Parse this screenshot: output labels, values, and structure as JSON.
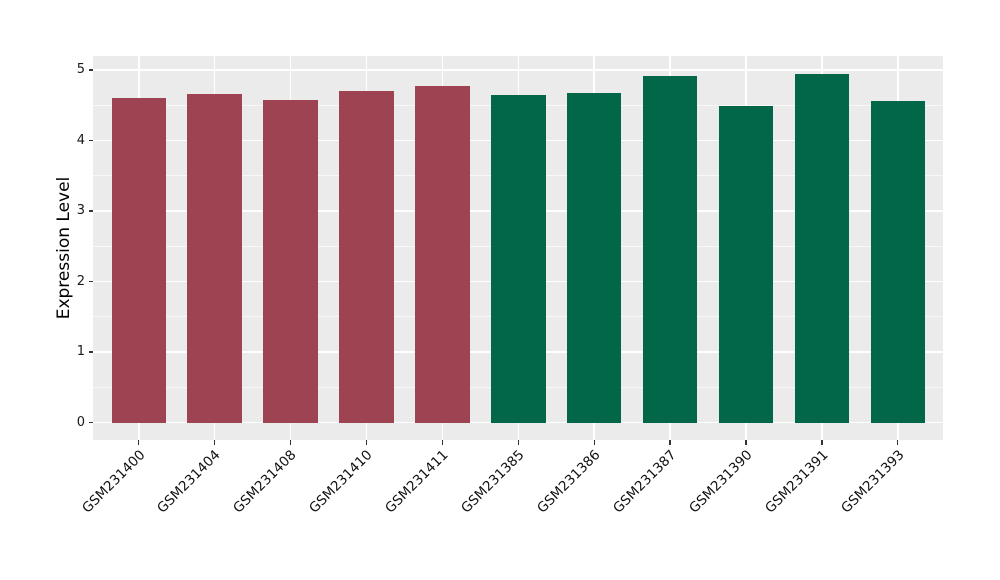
{
  "chart_data": {
    "type": "bar",
    "title": "",
    "xlabel": "",
    "ylabel": "Expression Level",
    "categories": [
      "GSM231400",
      "GSM231404",
      "GSM231408",
      "GSM231410",
      "GSM231411",
      "GSM231385",
      "GSM231386",
      "GSM231387",
      "GSM231390",
      "GSM231391",
      "GSM231393"
    ],
    "values": [
      4.6,
      4.66,
      4.58,
      4.71,
      4.78,
      4.65,
      4.67,
      4.91,
      4.49,
      4.95,
      4.56
    ],
    "bar_colors": [
      "#9E4352",
      "#9E4352",
      "#9E4352",
      "#9E4352",
      "#9E4352",
      "#026749",
      "#026749",
      "#026749",
      "#026749",
      "#026749",
      "#026749"
    ],
    "group_colors": {
      "left_group": "#9E4352",
      "right_group": "#026749"
    },
    "yticks": [
      0,
      1,
      2,
      3,
      4,
      5
    ],
    "ylim": [
      -0.25,
      5.2
    ],
    "legend": "none",
    "grid": "white major + minor horizontal, white vertical at category centers",
    "panel_background": "#EBEBEB",
    "tick_color": "#333333",
    "x_tick_label_rotation_deg": 45
  }
}
